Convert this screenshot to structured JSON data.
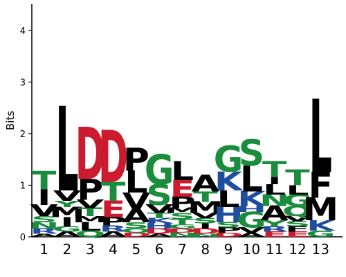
{
  "chart_data": {
    "type": "sequence-logo",
    "title": "",
    "xlabel": "",
    "ylabel": "Bits",
    "ylim": [
      0,
      4.5
    ],
    "yticks": [
      0,
      1,
      2,
      3,
      4
    ],
    "positions": [
      "1",
      "2",
      "3",
      "4",
      "5",
      "6",
      "7",
      "8",
      "9",
      "10",
      "11",
      "12",
      "13"
    ],
    "colors": {
      "hydrophobic": "#000000",
      "polar": "#1a8c3c",
      "acidic": "#cc1a2e",
      "basic": "#1f4e9e"
    },
    "stacks": [
      {
        "position": "1",
        "letters": [
          {
            "aa": "A",
            "bits": 0.06,
            "color": "#000000"
          },
          {
            "aa": "R",
            "bits": 0.1,
            "color": "#1f4e9e"
          },
          {
            "aa": "N",
            "bits": 0.12,
            "color": "#1a8c3c"
          },
          {
            "aa": "S",
            "bits": 0.12,
            "color": "#1a8c3c"
          },
          {
            "aa": "V",
            "bits": 0.22,
            "color": "#000000"
          },
          {
            "aa": "I",
            "bits": 0.3,
            "color": "#000000"
          },
          {
            "aa": "T",
            "bits": 0.35,
            "color": "#1a8c3c"
          }
        ]
      },
      {
        "position": "2",
        "letters": [
          {
            "aa": "A",
            "bits": 0.1,
            "color": "#000000"
          },
          {
            "aa": "G",
            "bits": 0.1,
            "color": "#1a8c3c"
          },
          {
            "aa": "I",
            "bits": 0.18,
            "color": "#000000"
          },
          {
            "aa": "M",
            "bits": 0.2,
            "color": "#000000"
          },
          {
            "aa": "Y",
            "bits": 0.12,
            "color": "#1a8c3c"
          },
          {
            "aa": "V",
            "bits": 0.2,
            "color": "#000000"
          },
          {
            "aa": "L",
            "bits": 1.62,
            "color": "#000000"
          }
        ]
      },
      {
        "position": "3",
        "letters": [
          {
            "aa": "Q",
            "bits": 0.12,
            "color": "#1a8c3c"
          },
          {
            "aa": "L",
            "bits": 0.16,
            "color": "#000000"
          },
          {
            "aa": "M",
            "bits": 0.12,
            "color": "#000000"
          },
          {
            "aa": "T",
            "bits": 0.16,
            "color": "#1a8c3c"
          },
          {
            "aa": "V",
            "bits": 0.16,
            "color": "#000000"
          },
          {
            "aa": "P",
            "bits": 0.4,
            "color": "#000000"
          },
          {
            "aa": "D",
            "bits": 1.0,
            "color": "#cc1a2e"
          }
        ]
      },
      {
        "position": "4",
        "letters": [
          {
            "aa": "A",
            "bits": 0.1,
            "color": "#000000"
          },
          {
            "aa": "R",
            "bits": 0.12,
            "color": "#1f4e9e"
          },
          {
            "aa": "P",
            "bits": 0.16,
            "color": "#000000"
          },
          {
            "aa": "E",
            "bits": 0.32,
            "color": "#cc1a2e"
          },
          {
            "aa": "T",
            "bits": 0.36,
            "color": "#1a8c3c"
          },
          {
            "aa": "D",
            "bits": 1.0,
            "color": "#cc1a2e"
          }
        ]
      },
      {
        "position": "5",
        "letters": [
          {
            "aa": "D",
            "bits": 0.08,
            "color": "#cc1a2e"
          },
          {
            "aa": "Q",
            "bits": 0.08,
            "color": "#1a8c3c"
          },
          {
            "aa": "S",
            "bits": 0.12,
            "color": "#1a8c3c"
          },
          {
            "aa": "A",
            "bits": 0.26,
            "color": "#000000"
          },
          {
            "aa": "V",
            "bits": 0.32,
            "color": "#000000"
          },
          {
            "aa": "L",
            "bits": 0.42,
            "color": "#000000"
          },
          {
            "aa": "P",
            "bits": 0.44,
            "color": "#000000"
          }
        ]
      },
      {
        "position": "6",
        "letters": [
          {
            "aa": "A",
            "bits": 0.06,
            "color": "#000000"
          },
          {
            "aa": "D",
            "bits": 0.1,
            "color": "#cc1a2e"
          },
          {
            "aa": "H",
            "bits": 0.1,
            "color": "#1f4e9e"
          },
          {
            "aa": "K",
            "bits": 0.1,
            "color": "#1f4e9e"
          },
          {
            "aa": "T",
            "bits": 0.1,
            "color": "#1a8c3c"
          },
          {
            "aa": "V",
            "bits": 0.16,
            "color": "#000000"
          },
          {
            "aa": "S",
            "bits": 0.4,
            "color": "#1a8c3c"
          },
          {
            "aa": "G",
            "bits": 0.58,
            "color": "#1a8c3c"
          }
        ]
      },
      {
        "position": "7",
        "letters": [
          {
            "aa": "N",
            "bits": 0.08,
            "color": "#1a8c3c"
          },
          {
            "aa": "D",
            "bits": 0.08,
            "color": "#cc1a2e"
          },
          {
            "aa": "G",
            "bits": 0.08,
            "color": "#1a8c3c"
          },
          {
            "aa": "T",
            "bits": 0.1,
            "color": "#1a8c3c"
          },
          {
            "aa": "S",
            "bits": 0.12,
            "color": "#1a8c3c"
          },
          {
            "aa": "M",
            "bits": 0.1,
            "color": "#000000"
          },
          {
            "aa": "P",
            "bits": 0.22,
            "color": "#000000"
          },
          {
            "aa": "E",
            "bits": 0.32,
            "color": "#cc1a2e"
          },
          {
            "aa": "L",
            "bits": 0.36,
            "color": "#000000"
          }
        ]
      },
      {
        "position": "8",
        "letters": [
          {
            "aa": "N",
            "bits": 0.06,
            "color": "#1a8c3c"
          },
          {
            "aa": "D",
            "bits": 0.1,
            "color": "#cc1a2e"
          },
          {
            "aa": "I",
            "bits": 0.1,
            "color": "#000000"
          },
          {
            "aa": "S",
            "bits": 0.1,
            "color": "#1a8c3c"
          },
          {
            "aa": "V",
            "bits": 0.1,
            "color": "#000000"
          },
          {
            "aa": "M",
            "bits": 0.22,
            "color": "#000000"
          },
          {
            "aa": "T",
            "bits": 0.2,
            "color": "#1a8c3c"
          },
          {
            "aa": "A",
            "bits": 0.32,
            "color": "#000000"
          }
        ]
      },
      {
        "position": "9",
        "letters": [
          {
            "aa": "D",
            "bits": 0.08,
            "color": "#cc1a2e"
          },
          {
            "aa": "P",
            "bits": 0.1,
            "color": "#000000"
          },
          {
            "aa": "S",
            "bits": 0.1,
            "color": "#1a8c3c"
          },
          {
            "aa": "H",
            "bits": 0.3,
            "color": "#1f4e9e"
          },
          {
            "aa": "L",
            "bits": 0.32,
            "color": "#000000"
          },
          {
            "aa": "K",
            "bits": 0.36,
            "color": "#1f4e9e"
          },
          {
            "aa": "G",
            "bits": 0.5,
            "color": "#1a8c3c"
          }
        ]
      },
      {
        "position": "10",
        "letters": [
          {
            "aa": "A",
            "bits": 0.08,
            "color": "#000000"
          },
          {
            "aa": "V",
            "bits": 0.1,
            "color": "#000000"
          },
          {
            "aa": "G",
            "bits": 0.3,
            "color": "#1a8c3c"
          },
          {
            "aa": "H",
            "bits": 0.12,
            "color": "#1f4e9e"
          },
          {
            "aa": "K",
            "bits": 0.28,
            "color": "#1f4e9e"
          },
          {
            "aa": "L",
            "bits": 0.5,
            "color": "#000000"
          },
          {
            "aa": "S",
            "bits": 0.5,
            "color": "#1a8c3c"
          }
        ]
      },
      {
        "position": "11",
        "letters": [
          {
            "aa": "E",
            "bits": 0.1,
            "color": "#cc1a2e"
          },
          {
            "aa": "R",
            "bits": 0.1,
            "color": "#1f4e9e"
          },
          {
            "aa": "Y",
            "bits": 0.12,
            "color": "#1a8c3c"
          },
          {
            "aa": "A",
            "bits": 0.28,
            "color": "#000000"
          },
          {
            "aa": "N",
            "bits": 0.22,
            "color": "#1a8c3c"
          },
          {
            "aa": "L",
            "bits": 0.2,
            "color": "#000000"
          },
          {
            "aa": "I",
            "bits": 0.14,
            "color": "#000000"
          },
          {
            "aa": "T",
            "bits": 0.3,
            "color": "#1a8c3c"
          }
        ]
      },
      {
        "position": "12",
        "letters": [
          {
            "aa": "E",
            "bits": 0.1,
            "color": "#cc1a2e"
          },
          {
            "aa": "F",
            "bits": 0.1,
            "color": "#000000"
          },
          {
            "aa": "S",
            "bits": 0.1,
            "color": "#1a8c3c"
          },
          {
            "aa": "V",
            "bits": 0.1,
            "color": "#000000"
          },
          {
            "aa": "Q",
            "bits": 0.2,
            "color": "#1a8c3c"
          },
          {
            "aa": "G",
            "bits": 0.22,
            "color": "#1a8c3c"
          },
          {
            "aa": "L",
            "bits": 0.18,
            "color": "#000000"
          },
          {
            "aa": "T",
            "bits": 0.3,
            "color": "#1a8c3c"
          }
        ]
      },
      {
        "position": "13",
        "letters": [
          {
            "aa": "G",
            "bits": 0.12,
            "color": "#1a8c3c"
          },
          {
            "aa": "K",
            "bits": 0.2,
            "color": "#1f4e9e"
          },
          {
            "aa": "M",
            "bits": 0.44,
            "color": "#000000"
          },
          {
            "aa": "F",
            "bits": 0.5,
            "color": "#000000"
          },
          {
            "aa": "L",
            "bits": 1.4,
            "color": "#000000"
          }
        ]
      }
    ]
  }
}
